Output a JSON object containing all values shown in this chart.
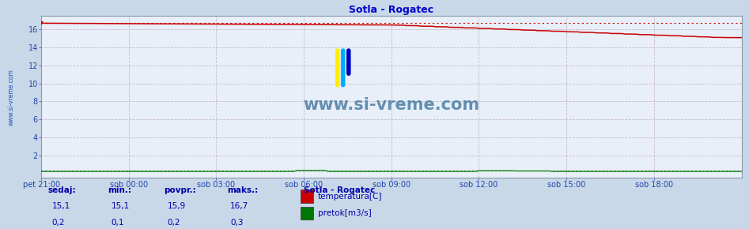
{
  "title": "Sotla - Rogatec",
  "title_color": "#0000cc",
  "bg_color": "#c8d8e8",
  "plot_bg_color": "#e8eff8",
  "x_tick_labels": [
    "pet 21:00",
    "sob 00:00",
    "sob 03:00",
    "sob 06:00",
    "sob 09:00",
    "sob 12:00",
    "sob 15:00",
    "sob 18:00"
  ],
  "x_tick_positions": [
    0,
    36,
    72,
    108,
    144,
    180,
    216,
    252
  ],
  "y_ticks": [
    2,
    4,
    6,
    8,
    10,
    12,
    14,
    16
  ],
  "ylim": [
    -0.5,
    17.5
  ],
  "xlim": [
    0,
    288
  ],
  "temp_color": "#cc0000",
  "flow_color": "#007700",
  "watermark_text": "www.si-vreme.com",
  "watermark_color": "#5585aa",
  "sidebar_text": "www.si-vreme.com",
  "sidebar_color": "#2255aa",
  "temp_max": 16.7,
  "temp_end": 15.1,
  "flow_max": 0.3,
  "flow_base": 0.2,
  "legend_title": "Sotla - Rogatec",
  "legend_items": [
    "temperatura[C]",
    "pretok[m3/s]"
  ],
  "legend_colors": [
    "#cc0000",
    "#007700"
  ],
  "table_headers": [
    "sedaj:",
    "min.:",
    "povpr.:",
    "maks.:"
  ],
  "table_row1": [
    "15,1",
    "15,1",
    "15,9",
    "16,7"
  ],
  "table_row2": [
    "0,2",
    "0,1",
    "0,2",
    "0,3"
  ],
  "table_color": "#0000aa",
  "n_points": 289
}
